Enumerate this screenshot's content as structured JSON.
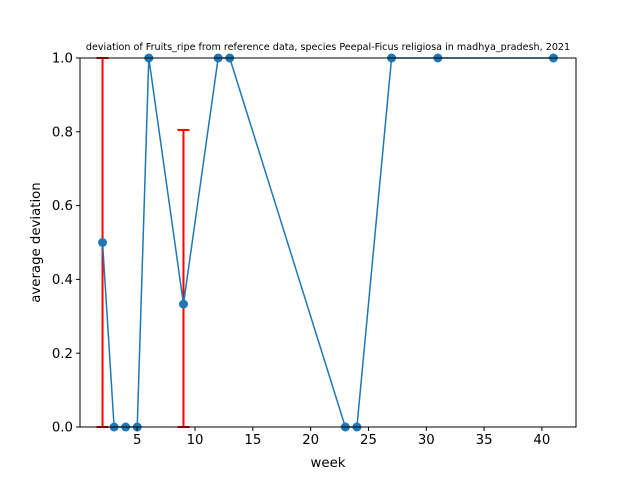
{
  "chart_data": {
    "type": "line",
    "title": "deviation of Fruits_ripe from reference data, species Peepal-Ficus religiosa in madhya_pradesh, 2021",
    "xlabel": "week",
    "ylabel": "average deviation",
    "xlim": [
      0.05,
      42.95
    ],
    "ylim": [
      0.0,
      1.0
    ],
    "xticks": [
      5,
      10,
      15,
      20,
      25,
      30,
      35,
      40
    ],
    "yticks": [
      0.0,
      0.2,
      0.4,
      0.6,
      0.8,
      1.0
    ],
    "xtick_labels": [
      "5",
      "10",
      "15",
      "20",
      "25",
      "30",
      "35",
      "40"
    ],
    "ytick_labels": [
      "0.0",
      "0.2",
      "0.4",
      "0.6",
      "0.8",
      "1.0"
    ],
    "grid": false,
    "series": [
      {
        "color": "#1f77b4",
        "marker": "circle",
        "x": [
          2,
          3,
          4,
          5,
          6,
          9,
          12,
          13,
          23,
          24,
          27,
          31,
          41
        ],
        "y": [
          0.5,
          0.0,
          0.0,
          0.0,
          1.0,
          0.333,
          1.0,
          1.0,
          0.0,
          0.0,
          1.0,
          1.0,
          1.0
        ]
      }
    ],
    "error_bars": {
      "color": "#ff0000",
      "items": [
        {
          "x": 2,
          "low": 0.0,
          "high": 1.0
        },
        {
          "x": 9,
          "low": 0.0,
          "high": 0.805
        }
      ]
    }
  }
}
